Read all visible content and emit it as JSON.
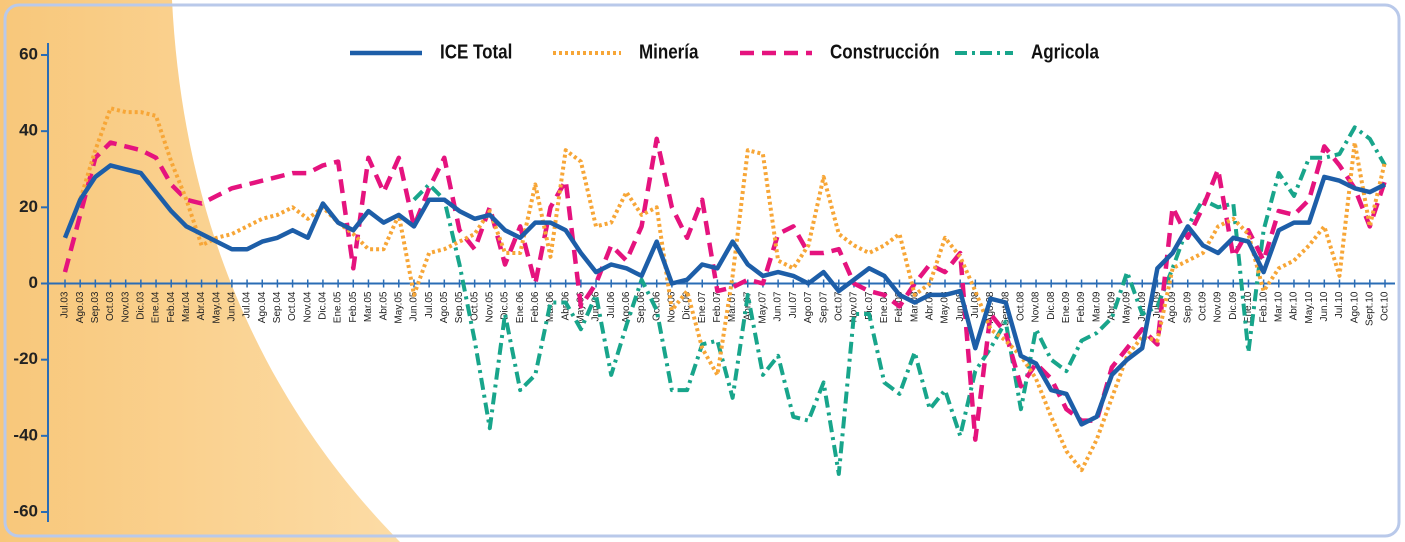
{
  "chart_data": {
    "type": "line",
    "categories": [
      "Jul.03",
      "Ago.03",
      "Sep.03",
      "Oct.03",
      "Nov.03",
      "Dic.03",
      "Ene.04",
      "Feb.04",
      "Mar.04",
      "Abr.04",
      "May.04",
      "Jun.04",
      "Jul.04",
      "Ago.04",
      "Sep.04",
      "Oct.04",
      "Nov.04",
      "Dic.04",
      "Ene.05",
      "Feb.05",
      "Mar.05",
      "Abr.05",
      "May.05",
      "Jun.05",
      "Jul.05",
      "Ago.05",
      "Sep.05",
      "Oct.05",
      "Nov.05",
      "Dic.05",
      "Ene.06",
      "Feb.06",
      "Mar.06",
      "Abr.06",
      "May.06",
      "Jun.06",
      "Jul.06",
      "Ago.06",
      "Sep.06",
      "Oct.06",
      "Nov.06",
      "Dic.06",
      "Ene.07",
      "Feb.07",
      "Mar.07",
      "Abr.07",
      "May.07",
      "Jun.07",
      "Jul.07",
      "Ago.07",
      "Sep.07",
      "Oct.07",
      "Nov.07",
      "Dic.07",
      "Ene.08",
      "Feb.08",
      "Mar.08",
      "Abr.08",
      "May.08",
      "Jun.08",
      "Jul.08",
      "Ago.08",
      "Sept.08",
      "Oct.08",
      "Nov.08",
      "Dic.08",
      "Ene.09",
      "Feb.09",
      "Mar.09",
      "Abr.09",
      "May.09",
      "Jun.09",
      "Jul.09",
      "Ago.09",
      "Sep.09",
      "Oct.09",
      "Nov.09",
      "Dic.09",
      "Ene.10",
      "Feb.10",
      "Mar.10",
      "Abr.10",
      "May.10",
      "Jun.10",
      "Jul.10",
      "Ago.10",
      "Sept.10",
      "Oct.10"
    ],
    "series": [
      {
        "name": "ICE Total",
        "color": "#1d5ea8",
        "style": "solid",
        "values": [
          12,
          22,
          28,
          31,
          30,
          29,
          24,
          19,
          15,
          13,
          11,
          9,
          9,
          11,
          12,
          14,
          12,
          21,
          16,
          14,
          19,
          16,
          18,
          15,
          22,
          22,
          19,
          17,
          18,
          14,
          12,
          16,
          16,
          14,
          8,
          3,
          5,
          4,
          2,
          11,
          0,
          1,
          5,
          4,
          11,
          5,
          2,
          3,
          2,
          0,
          3,
          -2,
          1,
          4,
          2,
          -3,
          -5,
          -3,
          -3,
          -2,
          -17,
          -4,
          -5,
          -19,
          -21,
          -28,
          -29,
          -37,
          -35,
          -24,
          -20,
          -17,
          4,
          8,
          15,
          10,
          8,
          12,
          11,
          3,
          14,
          16,
          16,
          28,
          27,
          25,
          24,
          26
        ]
      },
      {
        "name": "Minería",
        "color": "#f7a637",
        "style": "dotted",
        "values": [
          12,
          22,
          35,
          46,
          45,
          45,
          44,
          32,
          22,
          10,
          12,
          13,
          15,
          17,
          18,
          20,
          17,
          20,
          16,
          13,
          9,
          9,
          18,
          -3,
          8,
          9,
          11,
          13,
          19,
          8,
          8,
          26,
          7,
          35,
          32,
          15,
          16,
          24,
          18,
          20,
          -7,
          -2,
          -17,
          -24,
          2,
          35,
          34,
          6,
          4,
          10,
          28,
          13,
          10,
          8,
          10,
          13,
          -3,
          0,
          12,
          7,
          -2,
          -12,
          -15,
          -19,
          -25,
          -35,
          -44,
          -49,
          -41,
          -30,
          -19,
          -14,
          -15,
          4,
          6,
          8,
          15,
          17,
          13,
          -2,
          4,
          6,
          10,
          15,
          2,
          37,
          15,
          32
        ]
      },
      {
        "name": "Construcción",
        "color": "#e5137e",
        "style": "dashed",
        "values": [
          3,
          18,
          33,
          37,
          36,
          35,
          33,
          26,
          22,
          21,
          23,
          25,
          26,
          27,
          28,
          29,
          29,
          31,
          32,
          4,
          33,
          24,
          33,
          15,
          25,
          33,
          14,
          9,
          20,
          5,
          15,
          0,
          20,
          27,
          -6,
          0,
          10,
          6,
          15,
          38,
          20,
          12,
          22,
          -2,
          -1,
          1,
          0,
          13,
          15,
          8,
          8,
          9,
          0,
          -2,
          -3,
          -6,
          0,
          5,
          3,
          8,
          -41,
          -8,
          -13,
          -27,
          -21,
          -25,
          -33,
          -36,
          -36,
          -22,
          -17,
          -12,
          -16,
          20,
          12,
          20,
          30,
          7,
          14,
          6,
          19,
          18,
          22,
          36,
          31,
          25,
          15,
          27
        ]
      },
      {
        "name": "Agricola",
        "color": "#18a58b",
        "style": "dashdot",
        "values": [
          null,
          null,
          null,
          null,
          null,
          null,
          null,
          null,
          null,
          null,
          null,
          null,
          null,
          null,
          null,
          null,
          null,
          null,
          null,
          null,
          null,
          null,
          null,
          22,
          26,
          22,
          5,
          -15,
          -38,
          -8,
          -28,
          -24,
          -5,
          -5,
          -12,
          -3,
          -24,
          -11,
          1,
          -7,
          -28,
          -28,
          -16,
          -15,
          -30,
          -3,
          -24,
          -19,
          -35,
          -36,
          -26,
          -50,
          -8,
          -8,
          -26,
          -29,
          -18,
          -33,
          -28,
          -40,
          -23,
          -17,
          -10,
          -33,
          -12,
          -20,
          -23,
          -15,
          -13,
          -9,
          3,
          -8,
          -6,
          4,
          15,
          22,
          20,
          21,
          -18,
          14,
          29,
          23,
          33,
          33,
          34,
          41,
          38,
          31
        ]
      }
    ],
    "ylim": [
      -60,
      60
    ],
    "yticks": [
      -60,
      -40,
      -20,
      0,
      20,
      40,
      60
    ],
    "legend": "top"
  }
}
